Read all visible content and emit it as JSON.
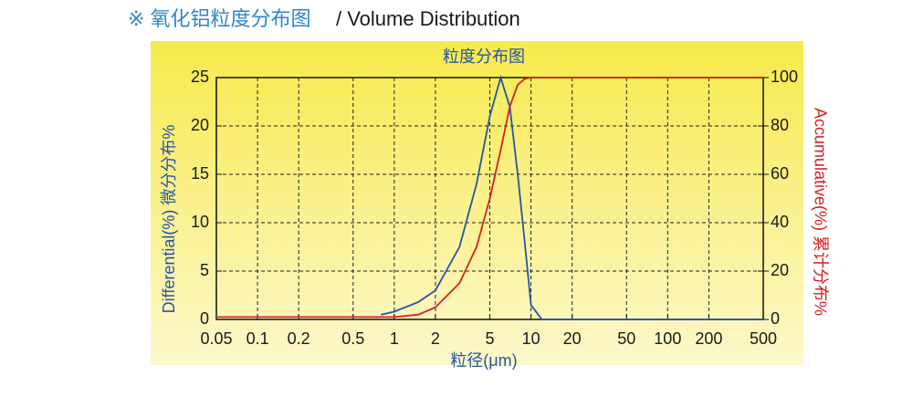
{
  "header": {
    "title": "※ 氧化铝粒度分布图",
    "subtitle": "/ Volume Distribution"
  },
  "chart_data": {
    "type": "line",
    "title": "粒度分布图",
    "x_label": "粒径(μm)",
    "y_label": "Differential(%)  微分分布%",
    "y2_label": "Accumulative(%)  累计分布%",
    "x_log": true,
    "grid": true,
    "xlim": [
      0.05,
      500
    ],
    "xticks": [
      0.05,
      0.1,
      0.2,
      0.5,
      1,
      2,
      5,
      10,
      20,
      50,
      100,
      200,
      500
    ],
    "ylim": [
      0,
      25
    ],
    "yticks": [
      0,
      5,
      10,
      15,
      20,
      25
    ],
    "y2lim": [
      0,
      100
    ],
    "y2ticks": [
      0,
      20,
      40,
      60,
      80,
      100
    ],
    "series": [
      {
        "name": "Differential",
        "color": "#2456a6",
        "axis": "y",
        "x": [
          0.8,
          1,
          1.5,
          2,
          3,
          4,
          5,
          6,
          7,
          8,
          9,
          10,
          12,
          500
        ],
        "values": [
          0.5,
          0.8,
          1.8,
          3,
          7.5,
          14,
          21,
          25,
          22,
          15,
          8,
          1.5,
          0,
          0
        ]
      },
      {
        "name": "Accumulative",
        "color": "#d42222",
        "axis": "y2",
        "x": [
          0.05,
          1,
          1.5,
          2,
          3,
          4,
          5,
          6,
          7,
          8,
          9,
          10,
          500
        ],
        "values": [
          1,
          1,
          2,
          5,
          15,
          30,
          50,
          70,
          88,
          97,
          99.5,
          100,
          100
        ]
      }
    ]
  }
}
